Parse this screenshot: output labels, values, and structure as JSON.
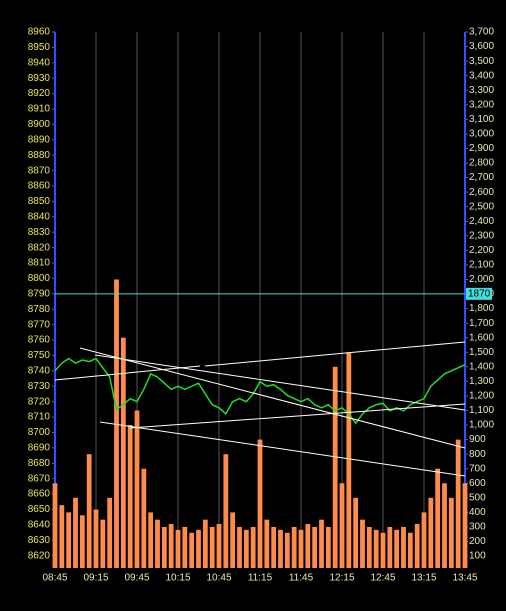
{
  "chart_data": {
    "type": "stock",
    "x": [
      "08:45",
      "08:50",
      "08:55",
      "09:00",
      "09:05",
      "09:10",
      "09:15",
      "09:20",
      "09:25",
      "09:30",
      "09:35",
      "09:40",
      "09:45",
      "09:50",
      "09:55",
      "10:00",
      "10:05",
      "10:10",
      "10:15",
      "10:20",
      "10:25",
      "10:30",
      "10:35",
      "10:40",
      "10:45",
      "10:50",
      "10:55",
      "11:00",
      "11:05",
      "11:10",
      "11:15",
      "11:20",
      "11:25",
      "11:30",
      "11:35",
      "11:40",
      "11:45",
      "11:50",
      "11:55",
      "12:00",
      "12:05",
      "12:10",
      "12:15",
      "12:20",
      "12:25",
      "12:30",
      "12:35",
      "12:40",
      "12:45",
      "12:50",
      "12:55",
      "13:00",
      "13:05",
      "13:10",
      "13:15",
      "13:20",
      "13:25",
      "13:30",
      "13:35",
      "13:40",
      "13:45"
    ],
    "series": [
      {
        "name": "Price",
        "color": "#22dd22",
        "values": [
          8740,
          8745,
          8748,
          8745,
          8747,
          8746,
          8748,
          8742,
          8736,
          8715,
          8718,
          8722,
          8720,
          8728,
          8738,
          8736,
          8732,
          8728,
          8730,
          8728,
          8730,
          8732,
          8725,
          8718,
          8716,
          8712,
          8720,
          8722,
          8720,
          8725,
          8733,
          8730,
          8731,
          8728,
          8724,
          8722,
          8720,
          8722,
          8718,
          8716,
          8718,
          8714,
          8716,
          8712,
          8706,
          8712,
          8716,
          8718,
          8719,
          8714,
          8716,
          8714,
          8718,
          8720,
          8722,
          8730,
          8734,
          8738,
          8740,
          8742,
          8744
        ]
      },
      {
        "name": "Volume",
        "color": "#ff8c4a",
        "axis": "y2",
        "values": [
          600,
          450,
          400,
          500,
          380,
          800,
          420,
          350,
          500,
          2000,
          1600,
          1000,
          1100,
          700,
          400,
          350,
          300,
          320,
          280,
          300,
          260,
          280,
          350,
          300,
          320,
          800,
          400,
          300,
          280,
          300,
          900,
          350,
          300,
          280,
          260,
          300,
          280,
          320,
          300,
          350,
          300,
          1400,
          600,
          1500,
          500,
          350,
          300,
          280,
          260,
          300,
          280,
          300,
          260,
          320,
          400,
          500,
          700,
          600,
          500,
          900,
          600
        ]
      }
    ],
    "xlim": [
      "08:45",
      "13:45"
    ],
    "xticks": [
      "08:45",
      "09:15",
      "09:45",
      "10:15",
      "10:45",
      "11:15",
      "11:45",
      "12:15",
      "12:45",
      "13:15",
      "13:45"
    ],
    "ylim": [
      8612,
      8960
    ],
    "yticks": [
      8620,
      8630,
      8640,
      8650,
      8660,
      8670,
      8680,
      8690,
      8700,
      8710,
      8720,
      8730,
      8740,
      8750,
      8760,
      8770,
      8780,
      8790,
      8800,
      8810,
      8820,
      8830,
      8840,
      8850,
      8860,
      8870,
      8880,
      8890,
      8900,
      8910,
      8920,
      8930,
      8940,
      8950,
      8960
    ],
    "y2lim": [
      18,
      3700
    ],
    "y2ticks": [
      100,
      200,
      300,
      400,
      500,
      600,
      700,
      800,
      900,
      {
        "value": 1000,
        "label": "1,000"
      },
      {
        "value": 1100,
        "label": "1,100"
      },
      {
        "value": 1200,
        "label": "1,200"
      },
      {
        "value": 1300,
        "label": "1,300"
      },
      {
        "value": 1400,
        "label": "1,400"
      },
      {
        "value": 1500,
        "label": "1,500"
      },
      {
        "value": 1600,
        "label": "1,600"
      },
      {
        "value": 1700,
        "label": "1,700"
      },
      {
        "value": 1800,
        "label": "1,800"
      },
      {
        "value": 1900,
        "label": "1,900"
      },
      {
        "value": 2000,
        "label": "2,000"
      },
      {
        "value": 2100,
        "label": "2,100"
      },
      {
        "value": 2200,
        "label": "2,200"
      },
      {
        "value": 2300,
        "label": "2,300"
      },
      {
        "value": 2400,
        "label": "2,400"
      },
      {
        "value": 2500,
        "label": "2,500"
      },
      {
        "value": 2600,
        "label": "2,600"
      },
      {
        "value": 2700,
        "label": "2,700"
      },
      {
        "value": 2800,
        "label": "2,800"
      },
      {
        "value": 2900,
        "label": "2,900"
      },
      {
        "value": 3000,
        "label": "3,000"
      },
      {
        "value": 3100,
        "label": "3,100"
      },
      {
        "value": 3200,
        "label": "3,200"
      },
      {
        "value": 3300,
        "label": "3,300"
      },
      {
        "value": 3400,
        "label": "3,400"
      },
      {
        "value": 3500,
        "label": "3,500"
      },
      {
        "value": 3600,
        "label": "3,600"
      },
      {
        "value": 3700,
        "label": "3,700"
      }
    ],
    "reference": {
      "value": 8790,
      "y2_value": 1870,
      "color": "#40e0e0"
    },
    "grid": true
  }
}
